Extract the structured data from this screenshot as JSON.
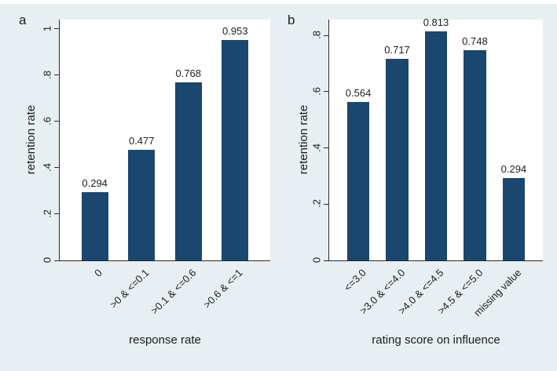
{
  "figure": {
    "background": "#e8eff2",
    "plot_background": "#ffffff",
    "bar_color": "#1a476f",
    "axis_color": "#2b2b2b",
    "text_color": "#1c1c1c"
  },
  "chart_data": [
    {
      "type": "bar",
      "panel_label": "a",
      "categories": [
        "0",
        ">0 & <=0.1",
        ">0.1 & <=0.6",
        ">0.6 & <=1"
      ],
      "values": [
        0.294,
        0.477,
        0.768,
        0.953
      ],
      "value_labels": [
        "0.294",
        "0.477",
        "0.768",
        "0.953"
      ],
      "xlabel": "response rate",
      "ylabel": "retention rate",
      "yticks": [
        0,
        0.2,
        0.4,
        0.6,
        0.8,
        1
      ],
      "ytick_labels": [
        "0",
        ".2",
        ".4",
        ".6",
        ".8",
        "1"
      ],
      "ylim": [
        0,
        1.04
      ],
      "grid": false,
      "legend": "none"
    },
    {
      "type": "bar",
      "panel_label": "b",
      "categories": [
        "<=3.0",
        ">3.0 & <=4.0",
        ">4.0 & <=4.5",
        ">4.5 & <=5.0",
        "missing value"
      ],
      "values": [
        0.564,
        0.717,
        0.813,
        0.748,
        0.294
      ],
      "value_labels": [
        "0.564",
        "0.717",
        "0.813",
        "0.748",
        "0.294"
      ],
      "xlabel": "rating score on influence",
      "ylabel": "retention rate",
      "yticks": [
        0,
        0.2,
        0.4,
        0.6,
        0.8
      ],
      "ytick_labels": [
        "0",
        ".2",
        ".4",
        ".6",
        ".8"
      ],
      "ylim": [
        0,
        0.856
      ],
      "grid": false,
      "legend": "none"
    }
  ]
}
